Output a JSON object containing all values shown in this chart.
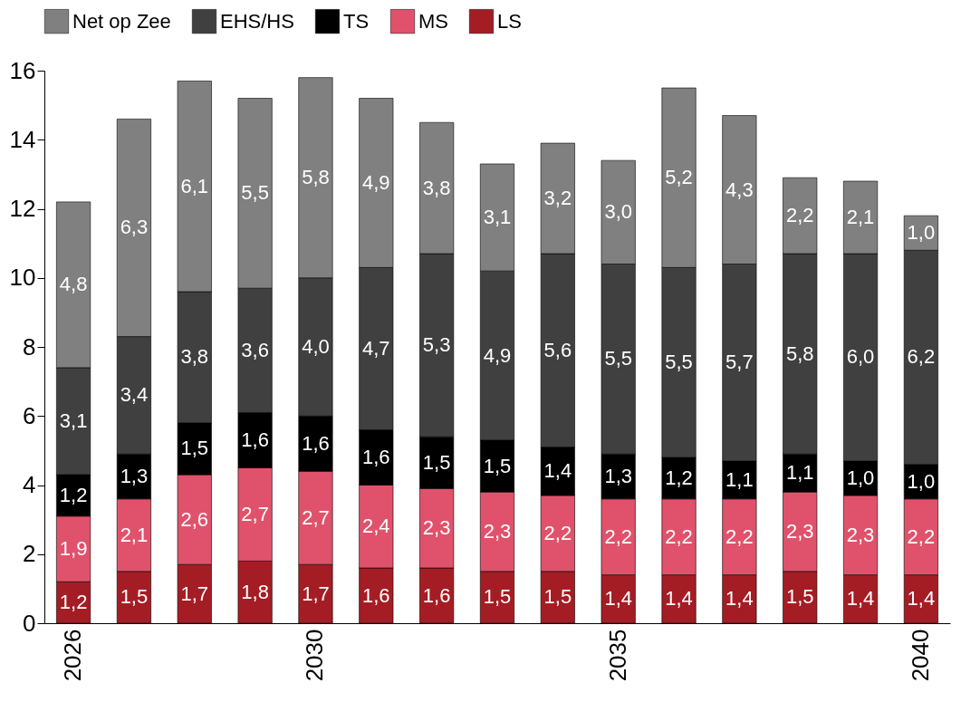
{
  "chart_data": {
    "type": "bar",
    "stacked": true,
    "categories": [
      "2026",
      null,
      null,
      null,
      "2030",
      null,
      null,
      null,
      null,
      "2035",
      null,
      null,
      null,
      null,
      "2040"
    ],
    "ylim": [
      0,
      16
    ],
    "yticks": [
      0,
      2,
      4,
      6,
      8,
      10,
      12,
      14,
      16
    ],
    "grid": false,
    "legend": "top",
    "series": [
      {
        "name": "LS",
        "color": "#a51d24",
        "values": [
          1.2,
          1.5,
          1.7,
          1.8,
          1.7,
          1.6,
          1.6,
          1.5,
          1.5,
          1.4,
          1.4,
          1.4,
          1.5,
          1.4,
          1.4
        ],
        "value_labels": [
          "1,2",
          "1,5",
          "1,7",
          "1,8",
          "1,7",
          "1,6",
          "1,6",
          "1,5",
          "1,5",
          "1,4",
          "1,4",
          "1,4",
          "1,5",
          "1,4",
          "1,4"
        ]
      },
      {
        "name": "MS",
        "color": "#e0526b",
        "values": [
          1.9,
          2.1,
          2.6,
          2.7,
          2.7,
          2.4,
          2.3,
          2.3,
          2.2,
          2.2,
          2.2,
          2.2,
          2.3,
          2.3,
          2.2
        ],
        "value_labels": [
          "1,9",
          "2,1",
          "2,6",
          "2,7",
          "2,7",
          "2,4",
          "2,3",
          "2,3",
          "2,2",
          "2,2",
          "2,2",
          "2,2",
          "2,3",
          "2,3",
          "2,2"
        ]
      },
      {
        "name": "TS",
        "color": "#000000",
        "values": [
          1.2,
          1.3,
          1.5,
          1.6,
          1.6,
          1.6,
          1.5,
          1.5,
          1.4,
          1.3,
          1.2,
          1.1,
          1.1,
          1.0,
          1.0
        ],
        "value_labels": [
          "1,2",
          "1,3",
          "1,5",
          "1,6",
          "1,6",
          "1,6",
          "1,5",
          "1,5",
          "1,4",
          "1,3",
          "1,2",
          "1,1",
          "1,1",
          "1,0",
          "1,0"
        ]
      },
      {
        "name": "EHS/HS",
        "color": "#404040",
        "values": [
          3.1,
          3.4,
          3.8,
          3.6,
          4.0,
          4.7,
          5.3,
          4.9,
          5.6,
          5.5,
          5.5,
          5.7,
          5.8,
          6.0,
          6.2
        ],
        "value_labels": [
          "3,1",
          "3,4",
          "3,8",
          "3,6",
          "4,0",
          "4,7",
          "5,3",
          "4,9",
          "5,6",
          "5,5",
          "5,5",
          "5,7",
          "5,8",
          "6,0",
          "6,2"
        ]
      },
      {
        "name": "Net op Zee",
        "color": "#808080",
        "values": [
          4.8,
          6.3,
          6.1,
          5.5,
          5.8,
          4.9,
          3.8,
          3.1,
          3.2,
          3.0,
          5.2,
          4.3,
          2.2,
          2.1,
          1.0
        ],
        "value_labels": [
          "4,8",
          "6,3",
          "6,1",
          "5,5",
          "5,8",
          "4,9",
          "3,8",
          "3,1",
          "3,2",
          "3,0",
          "5,2",
          "4,3",
          "2,2",
          "2,1",
          "1,0"
        ]
      }
    ]
  }
}
